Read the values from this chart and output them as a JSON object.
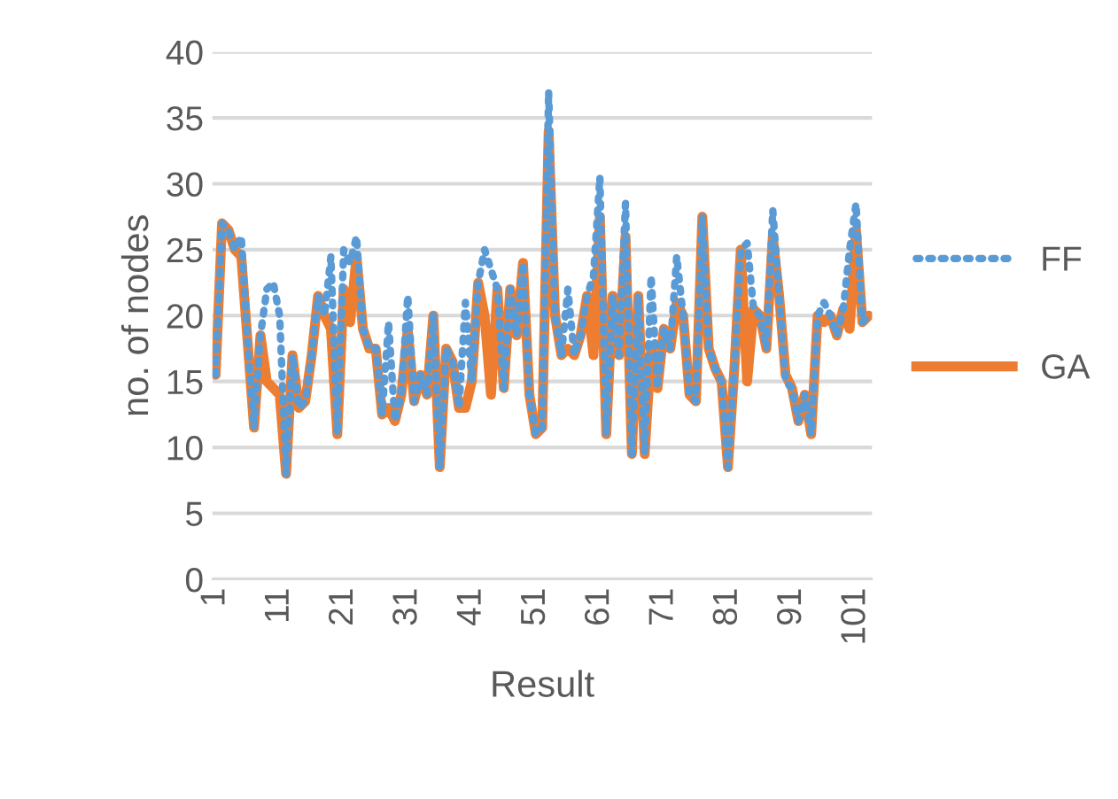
{
  "chart_data": {
    "type": "line",
    "xlabel": "Result",
    "ylabel": "no. of nodes",
    "categories": [
      "1",
      null,
      null,
      null,
      null,
      null,
      null,
      null,
      null,
      null,
      "11",
      null,
      null,
      null,
      null,
      null,
      null,
      null,
      null,
      null,
      "21",
      null,
      null,
      null,
      null,
      null,
      null,
      null,
      null,
      null,
      "31",
      null,
      null,
      null,
      null,
      null,
      null,
      null,
      null,
      null,
      "41",
      null,
      null,
      null,
      null,
      null,
      null,
      null,
      null,
      null,
      "51",
      null,
      null,
      null,
      null,
      null,
      null,
      null,
      null,
      null,
      "61",
      null,
      null,
      null,
      null,
      null,
      null,
      null,
      null,
      null,
      "71",
      null,
      null,
      null,
      null,
      null,
      null,
      null,
      null,
      null,
      "81",
      null,
      null,
      null,
      null,
      null,
      null,
      null,
      null,
      null,
      "91",
      null,
      null,
      null,
      null,
      null,
      null,
      null,
      null,
      null,
      "101",
      null,
      null
    ],
    "series": [
      {
        "name": "FF",
        "color": "#5b9bd5",
        "line_style": "dotted",
        "values": [
          15.5,
          27,
          26.5,
          25,
          26,
          18,
          11.5,
          18.5,
          22,
          22.5,
          20,
          8,
          17,
          13,
          13.5,
          17,
          21.5,
          20,
          24.5,
          11,
          25,
          24,
          26,
          19,
          17.5,
          17.5,
          12.5,
          19.5,
          12,
          14,
          21.5,
          13.5,
          15.5,
          14,
          20,
          8.5,
          17.5,
          16.5,
          13,
          21,
          15,
          22.5,
          25,
          23.5,
          22,
          14.5,
          22,
          18.5,
          24,
          14,
          11,
          11.5,
          37,
          20,
          17,
          22,
          17,
          18.5,
          21.5,
          23,
          30.5,
          11,
          21.5,
          17,
          28.5,
          9.5,
          21.5,
          9.5,
          23,
          14.5,
          19,
          17.5,
          24.5,
          20,
          14,
          13.5,
          27.5,
          17.5,
          16,
          15,
          8.5,
          16,
          25,
          25.5,
          20.5,
          20,
          17.5,
          28,
          21.5,
          15,
          14.5,
          12,
          14,
          11,
          20,
          21,
          20,
          18.5,
          20.5,
          25,
          28.5,
          19.5,
          20
        ]
      },
      {
        "name": "GA",
        "color": "#ed7d31",
        "line_style": "solid",
        "values": [
          15.5,
          27,
          26.5,
          25,
          24.5,
          18,
          11.5,
          18.5,
          15,
          14.5,
          14,
          8,
          17,
          13,
          13.5,
          17,
          21.5,
          20,
          19,
          11,
          22,
          19.5,
          24.5,
          19,
          17.5,
          17.5,
          12.5,
          13,
          12,
          14,
          19,
          13.5,
          15.5,
          14,
          20,
          8.5,
          17.5,
          16.5,
          13,
          13,
          15,
          22.5,
          20,
          14,
          22,
          14.5,
          22,
          18.5,
          24,
          14,
          11,
          11.5,
          34,
          20,
          17,
          17.5,
          17,
          18.5,
          21.5,
          17,
          27.5,
          11,
          21.5,
          17,
          26,
          9.5,
          21.5,
          9.5,
          17.5,
          14.5,
          19,
          17.5,
          21,
          20,
          14,
          13.5,
          27.5,
          17.5,
          16,
          15,
          8.5,
          16,
          25,
          15,
          20.5,
          20,
          17.5,
          26,
          21.5,
          15.5,
          14.5,
          12,
          14,
          11,
          20,
          19.5,
          20,
          18.5,
          20.5,
          19,
          26.5,
          19.5,
          20
        ]
      }
    ],
    "ylim": [
      0,
      40
    ],
    "yticks": [
      0,
      5,
      10,
      15,
      20,
      25,
      30,
      35,
      40
    ],
    "grid": "y",
    "legend": "right"
  }
}
